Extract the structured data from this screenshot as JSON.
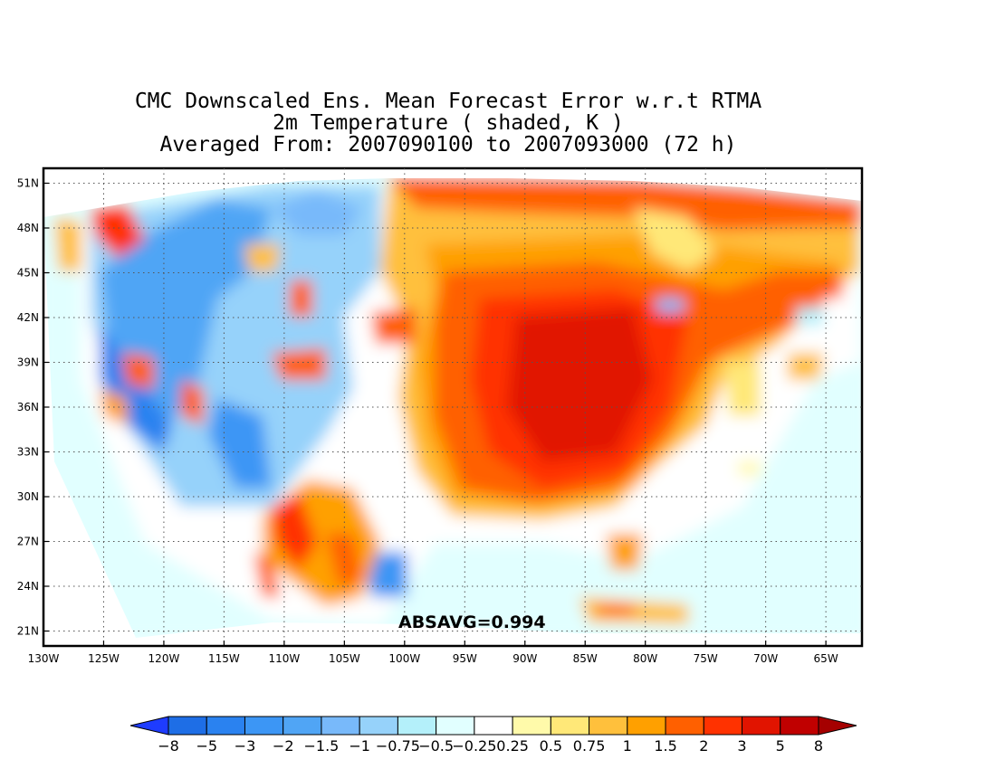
{
  "title": {
    "line1": "CMC Downscaled Ens. Mean Forecast Error w.r.t RTMA",
    "line2": "2m Temperature ( shaded, K )",
    "line3": "Averaged From: 2007090100 to 2007093000 (72 h)"
  },
  "annotation": "ABSAVG=0.994",
  "map": {
    "lon_range": [
      -130,
      -62
    ],
    "lat_range": [
      20,
      52
    ],
    "grid": "dotted",
    "lon_ticks": [
      {
        "value": -130,
        "label": "130W"
      },
      {
        "value": -125,
        "label": "125W"
      },
      {
        "value": -120,
        "label": "120W"
      },
      {
        "value": -115,
        "label": "115W"
      },
      {
        "value": -110,
        "label": "110W"
      },
      {
        "value": -105,
        "label": "105W"
      },
      {
        "value": -100,
        "label": "100W"
      },
      {
        "value": -95,
        "label": "95W"
      },
      {
        "value": -90,
        "label": "90W"
      },
      {
        "value": -85,
        "label": "85W"
      },
      {
        "value": -80,
        "label": "80W"
      },
      {
        "value": -75,
        "label": "75W"
      },
      {
        "value": -70,
        "label": "70W"
      },
      {
        "value": -65,
        "label": "65W"
      }
    ],
    "lat_ticks": [
      {
        "value": 21,
        "label": "21N"
      },
      {
        "value": 24,
        "label": "24N"
      },
      {
        "value": 27,
        "label": "27N"
      },
      {
        "value": 30,
        "label": "30N"
      },
      {
        "value": 33,
        "label": "33N"
      },
      {
        "value": 36,
        "label": "36N"
      },
      {
        "value": 39,
        "label": "39N"
      },
      {
        "value": 42,
        "label": "42N"
      },
      {
        "value": 45,
        "label": "45N"
      },
      {
        "value": 48,
        "label": "48N"
      },
      {
        "value": 51,
        "label": "51N"
      }
    ]
  },
  "colorbar": {
    "labels": [
      "−8",
      "−5",
      "−3",
      "−2",
      "−1.5",
      "−1",
      "−0.75",
      "−0.5",
      "−0.25",
      "0.25",
      "0.5",
      "0.75",
      "1",
      "1.5",
      "2",
      "3",
      "5",
      "8"
    ],
    "colors": [
      "#1e6ee6",
      "#2a82f0",
      "#3c96f5",
      "#50a5f5",
      "#78b9fa",
      "#96d2fa",
      "#b4f0fa",
      "#e1ffff",
      "#ffffff",
      "#fffaaa",
      "#ffe878",
      "#ffc03c",
      "#ffa000",
      "#ff6000",
      "#ff3200",
      "#e11400",
      "#c00000"
    ],
    "low_color": "#1e3cff",
    "high_color": "#a50000"
  }
}
